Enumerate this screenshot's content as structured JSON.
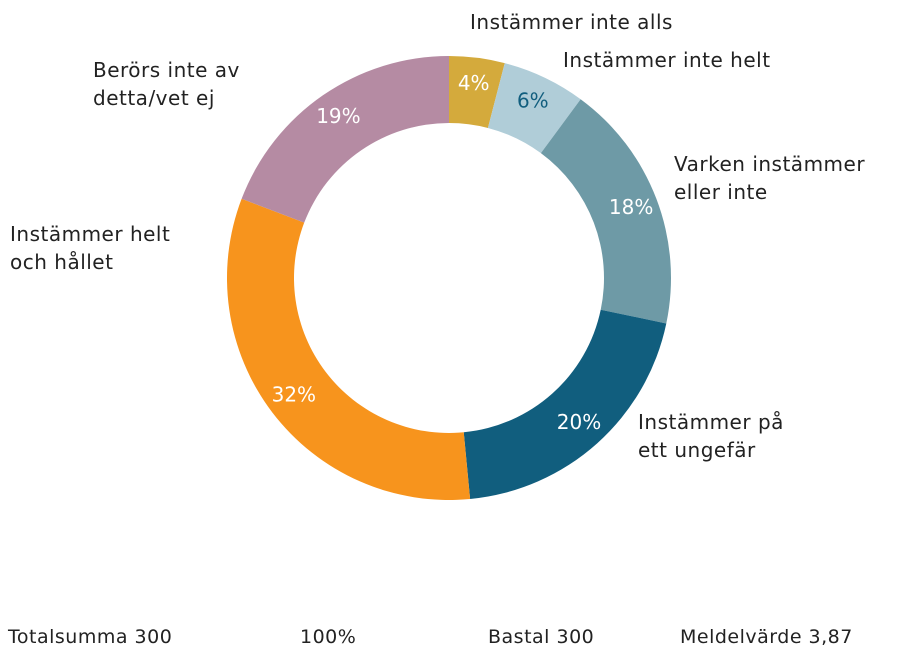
{
  "chart_data": {
    "type": "donut",
    "categories": [
      "Instämmer inte alls",
      "Instämmer inte helt",
      "Varken instämmer\neller inte",
      "Instämmer på\nett ungefär",
      "Instämmer helt\noch hållet",
      "Berörs inte av\ndetta/vet ej"
    ],
    "values": [
      4,
      6,
      18,
      20,
      32,
      19
    ],
    "value_labels": [
      "4%",
      "6%",
      "18%",
      "20%",
      "32%",
      "19%"
    ],
    "colors": [
      "#d4aa3c",
      "#b0cdd8",
      "#6e9aa6",
      "#115e7e",
      "#f7941d",
      "#b58ba3"
    ],
    "footer": [
      "Totalsumma 300",
      "100%",
      "Bastal 300",
      "Meldelvärde 3,87"
    ]
  }
}
